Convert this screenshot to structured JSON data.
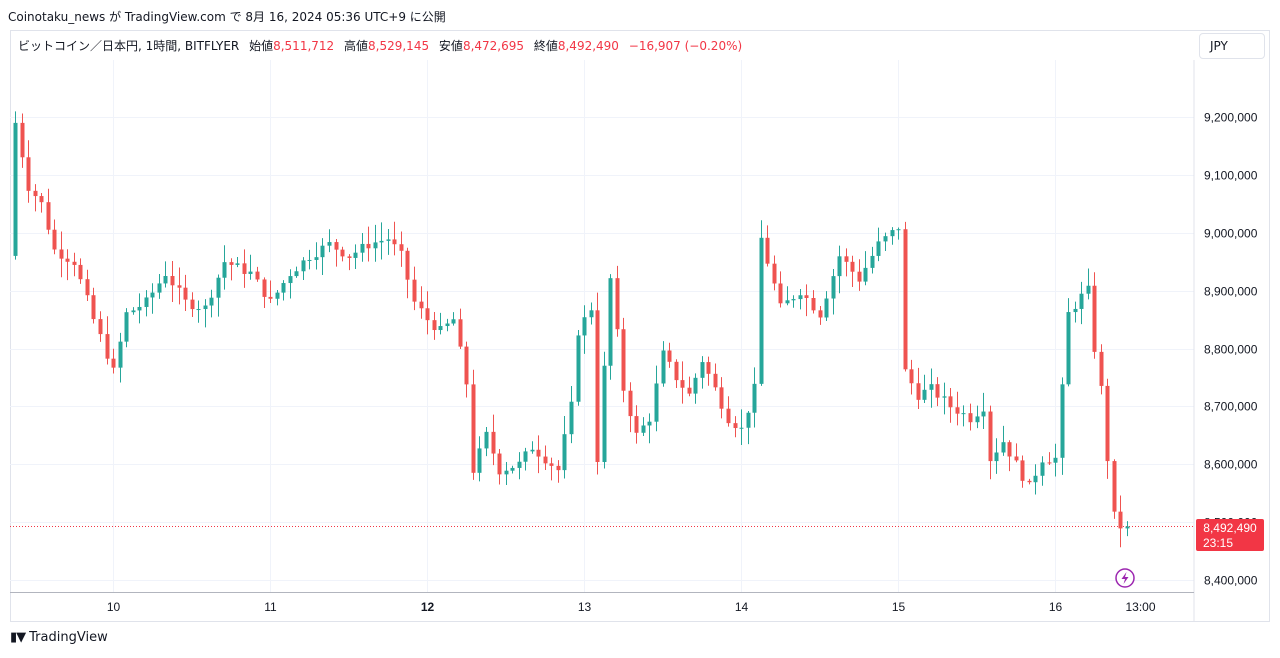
{
  "header": {
    "text": "Coinotaku_news が TradingView.com で 8月 16, 2024 05:36 UTC+9 に公開"
  },
  "legend": {
    "symbol": "ビットコイン／日本円, 1時間, BITFLYER",
    "open_label": "始値",
    "open_value": "8,511,712",
    "high_label": "高値",
    "high_value": "8,529,145",
    "low_label": "安値",
    "low_value": "8,472,695",
    "close_label": "終値",
    "close_value": "8,492,490",
    "change": "−16,907 (−0.20%)"
  },
  "currency_button": "JPY",
  "price_tag": {
    "price": "8,492,490",
    "countdown": "23:15"
  },
  "footer": {
    "logo_text": "TradingView"
  },
  "colors": {
    "up": "#26a69a",
    "down": "#ef5350",
    "grid": "#f0f3fa",
    "price_line": "#f23645",
    "alert": "#9c27b0"
  },
  "icons": {
    "alert": "lightning-icon",
    "logo": "tradingview-logo-icon"
  },
  "chart_data": {
    "type": "candlestick",
    "interval": "1h",
    "currency": "JPY",
    "y_ticks": [
      8400000,
      8500000,
      8600000,
      8700000,
      8800000,
      8900000,
      9000000,
      9100000,
      9200000
    ],
    "y_tick_labels": [
      "8,400,000",
      "8,500,000",
      "8,600,000",
      "8,700,000",
      "8,800,000",
      "8,900,000",
      "9,000,000",
      "9,100,000",
      "9,200,000"
    ],
    "x_ticks": [
      {
        "hour": 15,
        "label": "10",
        "bold": false
      },
      {
        "hour": 39,
        "label": "11",
        "bold": false
      },
      {
        "hour": 63,
        "label": "12",
        "bold": true
      },
      {
        "hour": 87,
        "label": "13",
        "bold": false
      },
      {
        "hour": 111,
        "label": "14",
        "bold": false
      },
      {
        "hour": 135,
        "label": "15",
        "bold": false
      },
      {
        "hour": 159,
        "label": "16",
        "bold": false
      },
      {
        "hour": 172,
        "label": "13:00",
        "bold": false
      }
    ],
    "ylim": [
      8380000,
      9280000
    ],
    "xlim": [
      -0.3,
      177
    ],
    "last_price": 8492490,
    "anchors": [
      [
        0,
        9000000
      ],
      [
        1,
        9190000
      ],
      [
        3,
        9080000
      ],
      [
        5,
        9050000
      ],
      [
        7,
        8970000
      ],
      [
        10,
        8950000
      ],
      [
        13,
        8850000
      ],
      [
        16,
        8760000
      ],
      [
        18,
        8860000
      ],
      [
        21,
        8880000
      ],
      [
        24,
        8930000
      ],
      [
        27,
        8880000
      ],
      [
        30,
        8870000
      ],
      [
        33,
        8950000
      ],
      [
        37,
        8930000
      ],
      [
        40,
        8880000
      ],
      [
        43,
        8930000
      ],
      [
        46,
        8960000
      ],
      [
        49,
        8980000
      ],
      [
        52,
        8960000
      ],
      [
        55,
        8980000
      ],
      [
        58,
        8990000
      ],
      [
        60,
        8960000
      ],
      [
        62,
        8880000
      ],
      [
        64,
        8850000
      ],
      [
        66,
        8830000
      ],
      [
        68,
        8850000
      ],
      [
        70,
        8740000
      ],
      [
        71,
        8590000
      ],
      [
        73,
        8650000
      ],
      [
        75,
        8590000
      ],
      [
        78,
        8600000
      ],
      [
        80,
        8630000
      ],
      [
        82,
        8610000
      ],
      [
        84,
        8590000
      ],
      [
        86,
        8700000
      ],
      [
        87,
        8830000
      ],
      [
        89,
        8870000
      ],
      [
        90,
        8610000
      ],
      [
        92,
        8920000
      ],
      [
        94,
        8730000
      ],
      [
        96,
        8650000
      ],
      [
        98,
        8680000
      ],
      [
        100,
        8790000
      ],
      [
        102,
        8750000
      ],
      [
        104,
        8720000
      ],
      [
        106,
        8780000
      ],
      [
        108,
        8730000
      ],
      [
        110,
        8680000
      ],
      [
        112,
        8660000
      ],
      [
        114,
        8730000
      ],
      [
        115,
        8990000
      ],
      [
        118,
        8870000
      ],
      [
        121,
        8900000
      ],
      [
        124,
        8860000
      ],
      [
        127,
        8960000
      ],
      [
        130,
        8920000
      ],
      [
        133,
        8980000
      ],
      [
        135,
        9000000
      ],
      [
        136,
        9010000
      ],
      [
        137,
        8760000
      ],
      [
        139,
        8720000
      ],
      [
        141,
        8730000
      ],
      [
        144,
        8700000
      ],
      [
        147,
        8680000
      ],
      [
        149,
        8700000
      ],
      [
        150,
        8610000
      ],
      [
        152,
        8640000
      ],
      [
        154,
        8600000
      ],
      [
        156,
        8560000
      ],
      [
        158,
        8610000
      ],
      [
        160,
        8610000
      ],
      [
        161,
        8730000
      ],
      [
        162,
        8860000
      ],
      [
        164,
        8890000
      ],
      [
        165,
        8900000
      ],
      [
        166,
        8800000
      ],
      [
        167,
        8730000
      ],
      [
        168,
        8610000
      ],
      [
        169,
        8510000
      ],
      [
        170,
        8492490
      ]
    ]
  }
}
